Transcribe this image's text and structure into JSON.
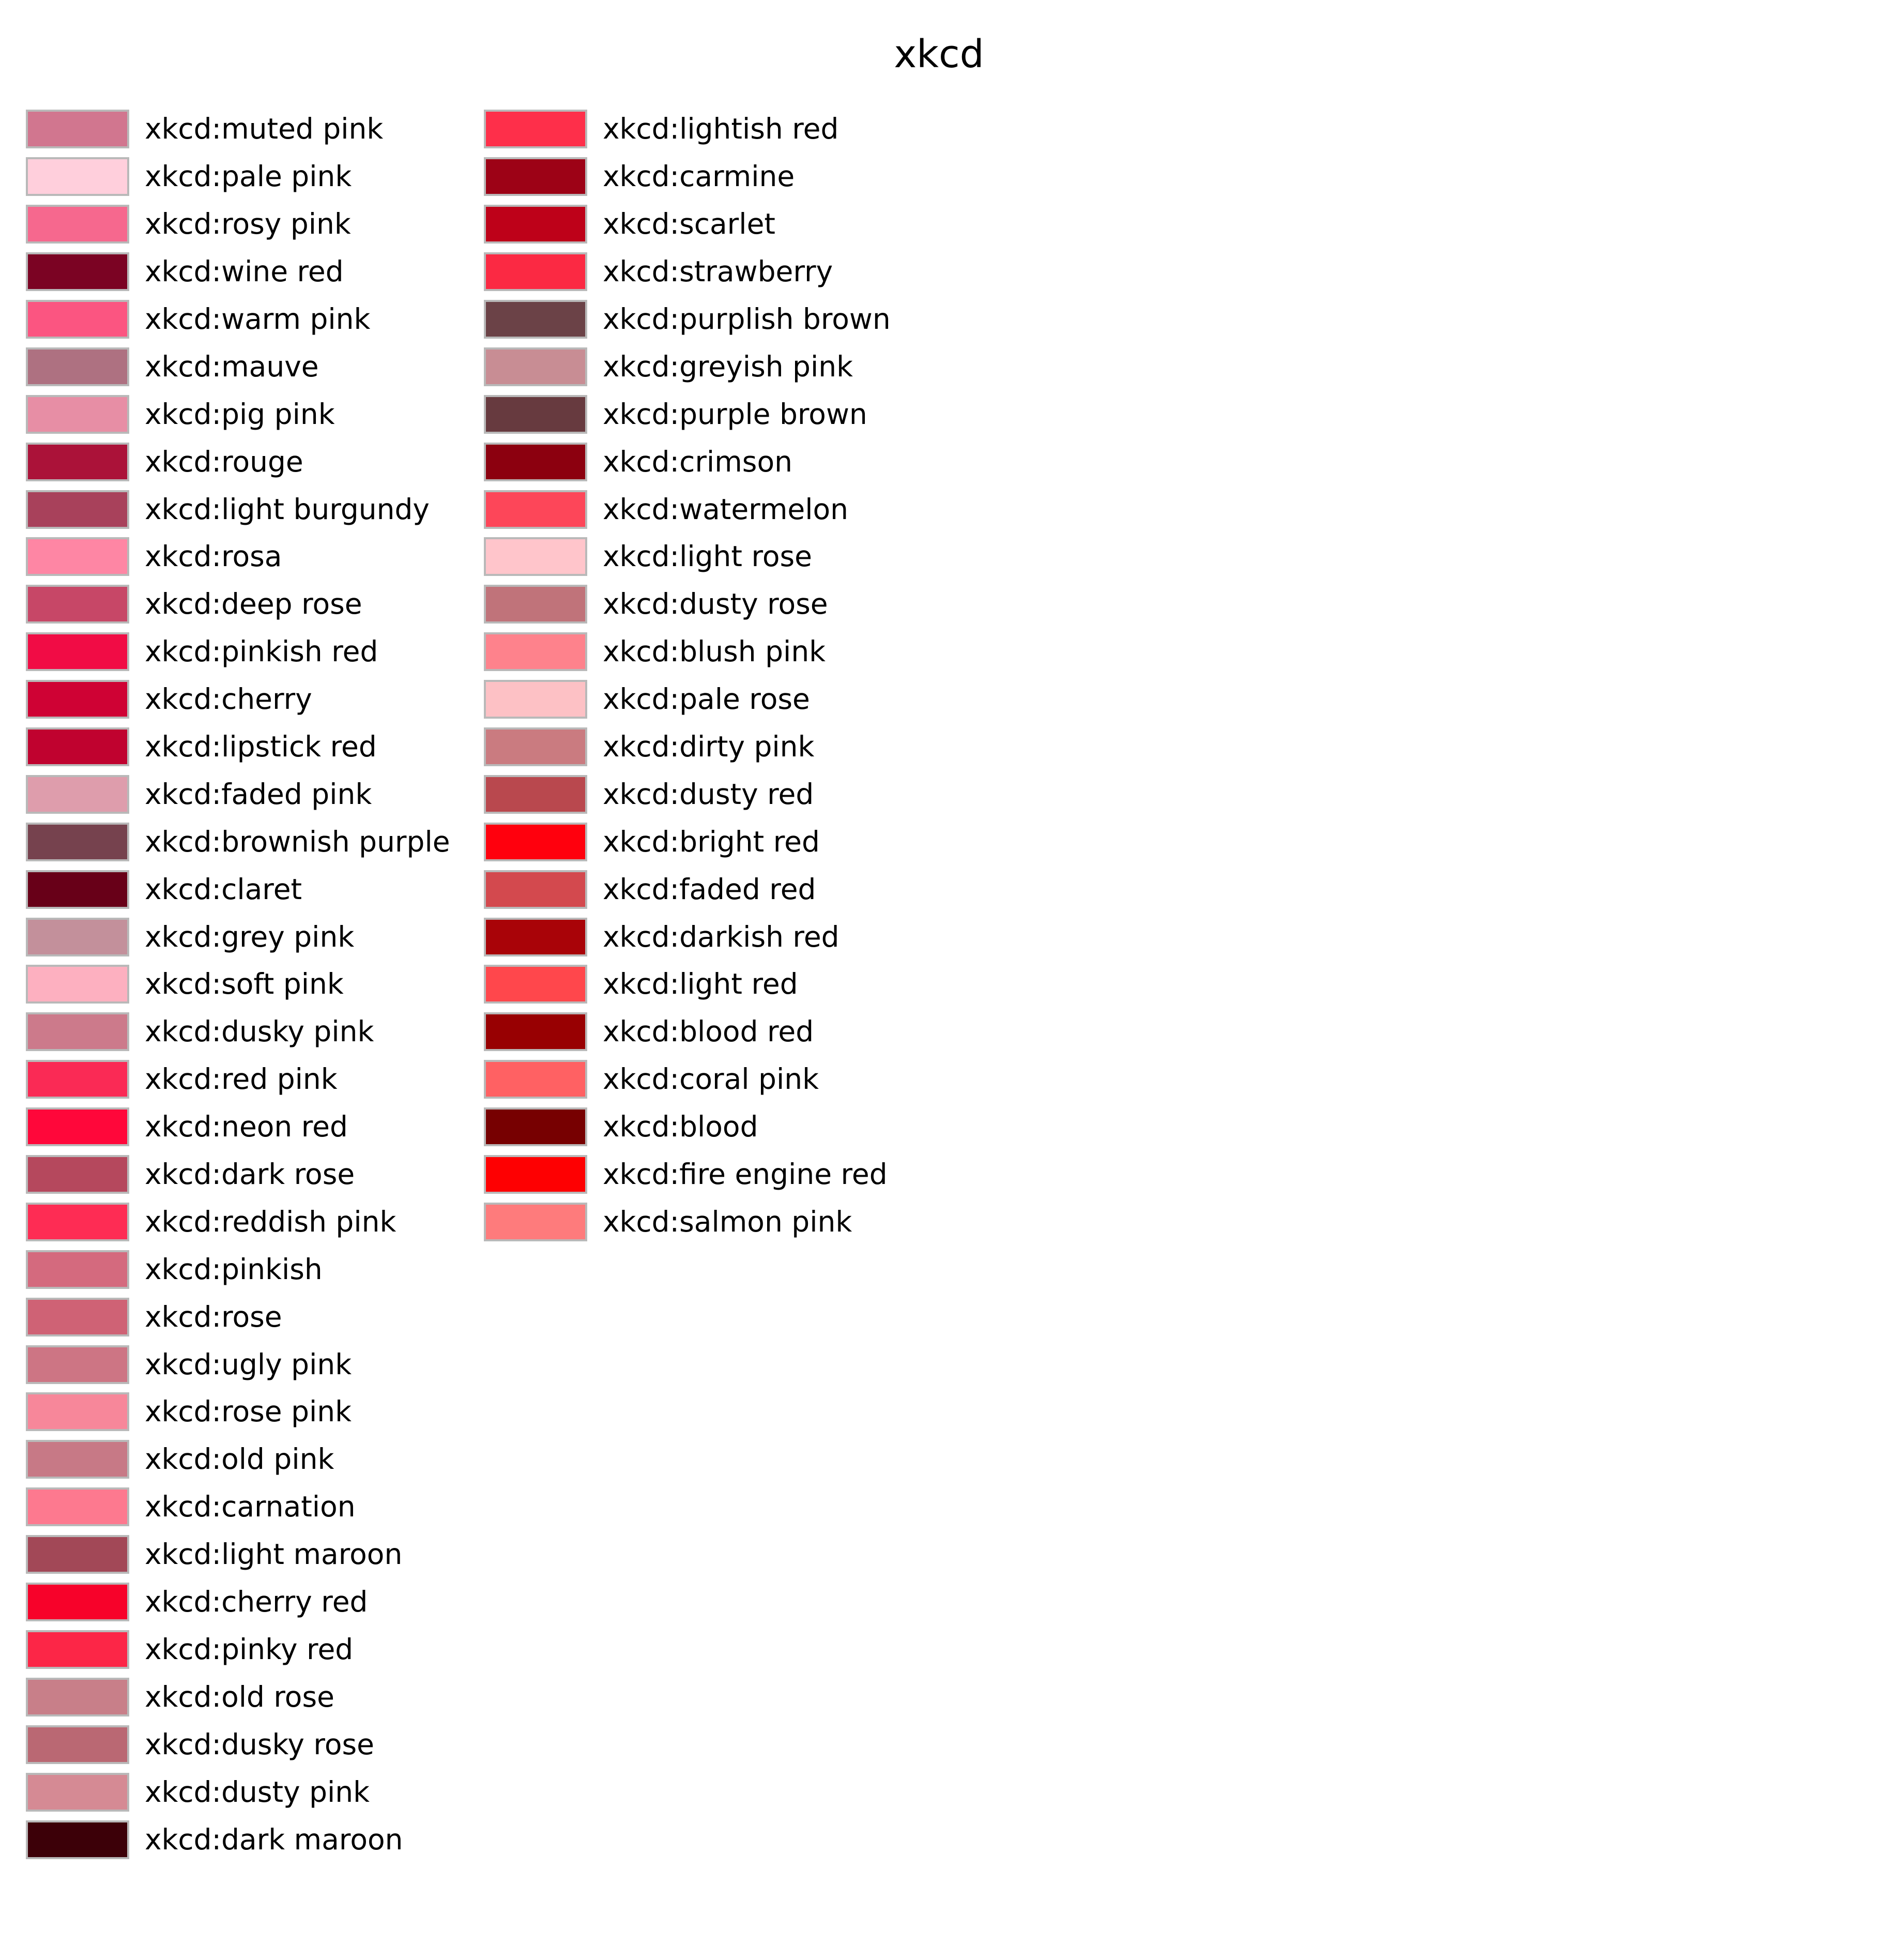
{
  "title": "xkcd",
  "columns": [
    {
      "items": [
        {
          "label": "xkcd:muted pink",
          "color": "#d1768f"
        },
        {
          "label": "xkcd:pale pink",
          "color": "#ffcfdc"
        },
        {
          "label": "xkcd:rosy pink",
          "color": "#f6688e"
        },
        {
          "label": "xkcd:wine red",
          "color": "#7b0323"
        },
        {
          "label": "xkcd:warm pink",
          "color": "#fb5581"
        },
        {
          "label": "xkcd:mauve",
          "color": "#ae7181"
        },
        {
          "label": "xkcd:pig pink",
          "color": "#e78ea5"
        },
        {
          "label": "xkcd:rouge",
          "color": "#ab1239"
        },
        {
          "label": "xkcd:light burgundy",
          "color": "#a8415b"
        },
        {
          "label": "xkcd:rosa",
          "color": "#fe86a4"
        },
        {
          "label": "xkcd:deep rose",
          "color": "#c74767"
        },
        {
          "label": "xkcd:pinkish red",
          "color": "#f10c45"
        },
        {
          "label": "xkcd:cherry",
          "color": "#cf0234"
        },
        {
          "label": "xkcd:lipstick red",
          "color": "#c0022f"
        },
        {
          "label": "xkcd:faded pink",
          "color": "#de9dac"
        },
        {
          "label": "xkcd:brownish purple",
          "color": "#76424e"
        },
        {
          "label": "xkcd:claret",
          "color": "#680018"
        },
        {
          "label": "xkcd:grey pink",
          "color": "#c3909b"
        },
        {
          "label": "xkcd:soft pink",
          "color": "#fdb0c0"
        },
        {
          "label": "xkcd:dusky pink",
          "color": "#cc7a8b"
        },
        {
          "label": "xkcd:red pink",
          "color": "#fa2a55"
        },
        {
          "label": "xkcd:neon red",
          "color": "#ff073a"
        },
        {
          "label": "xkcd:dark rose",
          "color": "#b5485d"
        },
        {
          "label": "xkcd:reddish pink",
          "color": "#fe2c54"
        },
        {
          "label": "xkcd:pinkish",
          "color": "#d46a7e"
        },
        {
          "label": "xkcd:rose",
          "color": "#cf6275"
        },
        {
          "label": "xkcd:ugly pink",
          "color": "#cd7584"
        },
        {
          "label": "xkcd:rose pink",
          "color": "#f7879a"
        },
        {
          "label": "xkcd:old pink",
          "color": "#c77986"
        },
        {
          "label": "xkcd:carnation",
          "color": "#fd798f"
        },
        {
          "label": "xkcd:light maroon",
          "color": "#a24857"
        },
        {
          "label": "xkcd:cherry red",
          "color": "#f7022a"
        },
        {
          "label": "xkcd:pinky red",
          "color": "#fc2647"
        },
        {
          "label": "xkcd:old rose",
          "color": "#c87f89"
        },
        {
          "label": "xkcd:dusky rose",
          "color": "#ba6873"
        },
        {
          "label": "xkcd:dusty pink",
          "color": "#d58a94"
        },
        {
          "label": "xkcd:dark maroon",
          "color": "#3c0008"
        }
      ]
    },
    {
      "items": [
        {
          "label": "xkcd:lightish red",
          "color": "#fe2f4a"
        },
        {
          "label": "xkcd:carmine",
          "color": "#9d0216"
        },
        {
          "label": "xkcd:scarlet",
          "color": "#be0119"
        },
        {
          "label": "xkcd:strawberry",
          "color": "#fb2943"
        },
        {
          "label": "xkcd:purplish brown",
          "color": "#6b4247"
        },
        {
          "label": "xkcd:greyish pink",
          "color": "#c88d94"
        },
        {
          "label": "xkcd:purple brown",
          "color": "#673a3f"
        },
        {
          "label": "xkcd:crimson",
          "color": "#8c000f"
        },
        {
          "label": "xkcd:watermelon",
          "color": "#fd4659"
        },
        {
          "label": "xkcd:light rose",
          "color": "#ffc5cb"
        },
        {
          "label": "xkcd:dusty rose",
          "color": "#c0737a"
        },
        {
          "label": "xkcd:blush pink",
          "color": "#fe828c"
        },
        {
          "label": "xkcd:pale rose",
          "color": "#fdc1c5"
        },
        {
          "label": "xkcd:dirty pink",
          "color": "#ca7b80"
        },
        {
          "label": "xkcd:dusty red",
          "color": "#b9484e"
        },
        {
          "label": "xkcd:bright red",
          "color": "#ff000d"
        },
        {
          "label": "xkcd:faded red",
          "color": "#d3494e"
        },
        {
          "label": "xkcd:darkish red",
          "color": "#a90308"
        },
        {
          "label": "xkcd:light red",
          "color": "#ff474c"
        },
        {
          "label": "xkcd:blood red",
          "color": "#980002"
        },
        {
          "label": "xkcd:coral pink",
          "color": "#ff6163"
        },
        {
          "label": "xkcd:blood",
          "color": "#770001"
        },
        {
          "label": "xkcd:fire engine red",
          "color": "#fe0002"
        },
        {
          "label": "xkcd:salmon pink",
          "color": "#fe7b7c"
        }
      ]
    }
  ]
}
